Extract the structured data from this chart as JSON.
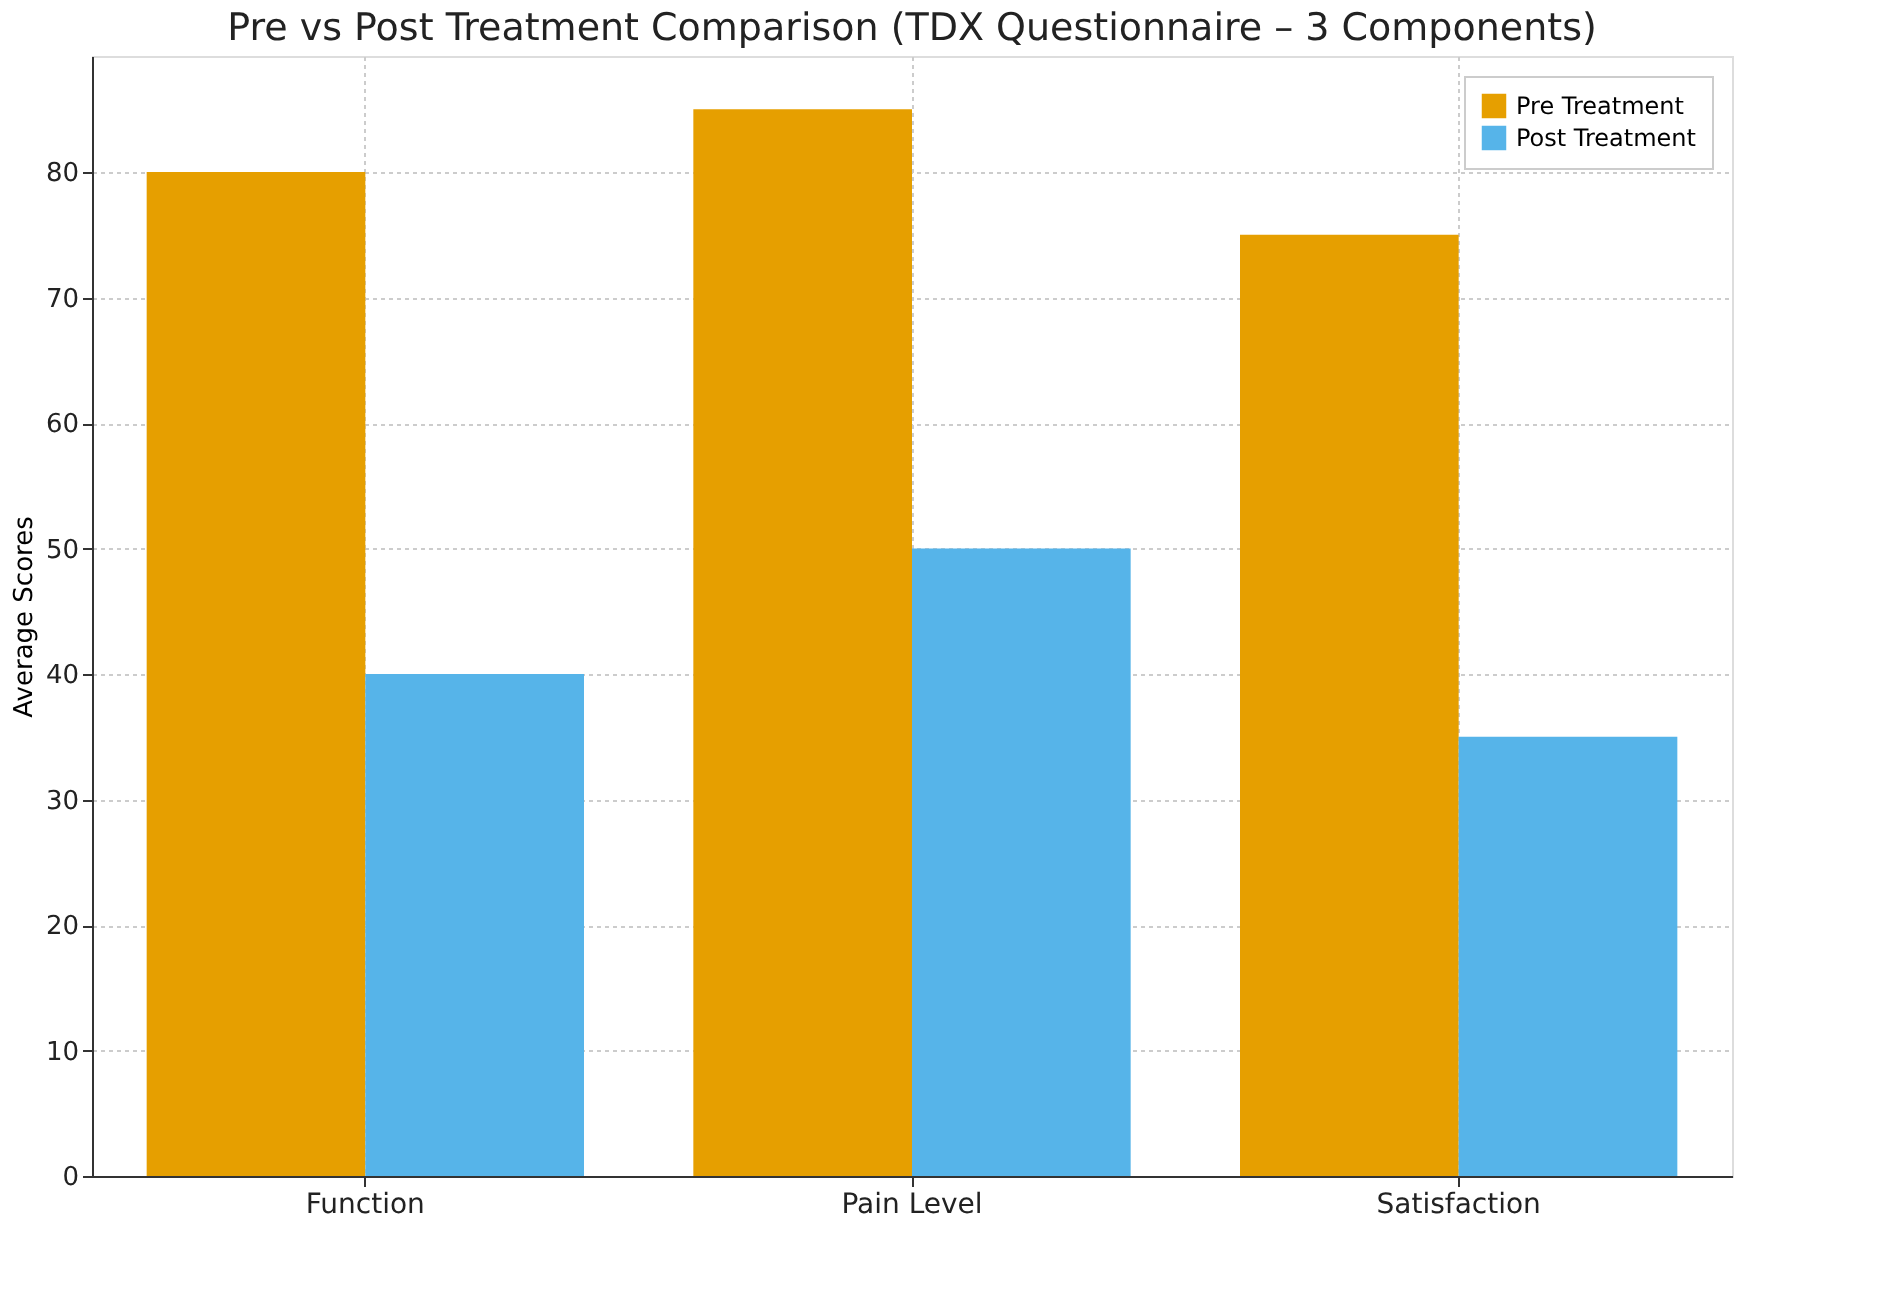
{
  "chart_data": {
    "type": "bar",
    "title": "Pre vs Post Treatment Comparison (TDX Questionnaire – 3 Components)",
    "ylabel": "Average Scores",
    "categories": [
      "Function",
      "Pain Level",
      "Satisfaction"
    ],
    "series": [
      {
        "name": "Pre Treatment",
        "color": "#e69f00",
        "values": [
          80,
          85,
          75
        ]
      },
      {
        "name": "Post Treatment",
        "color": "#56b4e9",
        "values": [
          40,
          50,
          35
        ]
      }
    ],
    "ylim": [
      0,
      89.25
    ],
    "yticks": [
      0,
      10,
      20,
      30,
      40,
      50,
      60,
      70,
      80
    ],
    "grid": true,
    "legend": "top right"
  }
}
